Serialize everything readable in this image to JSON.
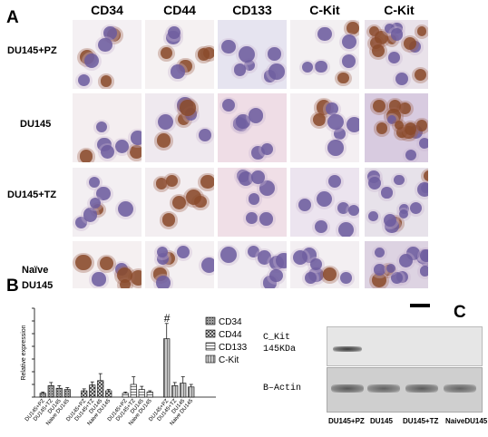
{
  "panel_a": {
    "letter": "A",
    "columns": [
      "CD34",
      "CD44",
      "CD133",
      "C-Kit",
      "C-Kit"
    ],
    "rows": [
      "DU145+PZ",
      "DU145",
      "DU145+TZ",
      "Naïve",
      "DU145"
    ],
    "colors": {
      "hematoxylin": "#6b5a9e",
      "dab": "#8a4a2a",
      "background": "#f3eef2"
    }
  },
  "panel_b": {
    "letter": "B",
    "hash_label": "#",
    "legend": [
      "CD34",
      "CD44",
      "CD133",
      "C-Kit"
    ]
  },
  "panel_c": {
    "letter": "C",
    "band1_label": "C_Kit",
    "band1_size": "145KDa",
    "band2_label": "B–Actin",
    "lanes": [
      "DU145+PZ",
      "DU145",
      "DU145+TZ",
      "NaiveDU145"
    ]
  },
  "chart_data": {
    "type": "bar",
    "ylabel": "Relative expression",
    "groups": [
      "CD34",
      "CD44",
      "CD133",
      "C-Kit"
    ],
    "categories": [
      "DU145+PZ",
      "DU145+TZ",
      "DU145",
      "Naive DU145"
    ],
    "series": [
      {
        "name": "CD34",
        "values": [
          0.3,
          0.9,
          0.7,
          0.6
        ],
        "errors": [
          0.1,
          0.25,
          0.2,
          0.15
        ]
      },
      {
        "name": "CD44",
        "values": [
          0.5,
          0.95,
          1.3,
          0.5
        ],
        "errors": [
          0.15,
          0.25,
          0.55,
          0.1
        ]
      },
      {
        "name": "CD133",
        "values": [
          0.3,
          1.0,
          0.6,
          0.4
        ],
        "errors": [
          0.1,
          0.6,
          0.25,
          0.1
        ]
      },
      {
        "name": "C-Kit",
        "values": [
          4.6,
          0.9,
          1.1,
          0.8
        ],
        "errors": [
          1.2,
          0.25,
          0.5,
          0.2
        ]
      }
    ],
    "ylim": [
      0,
      7
    ],
    "legend_position": "right"
  }
}
